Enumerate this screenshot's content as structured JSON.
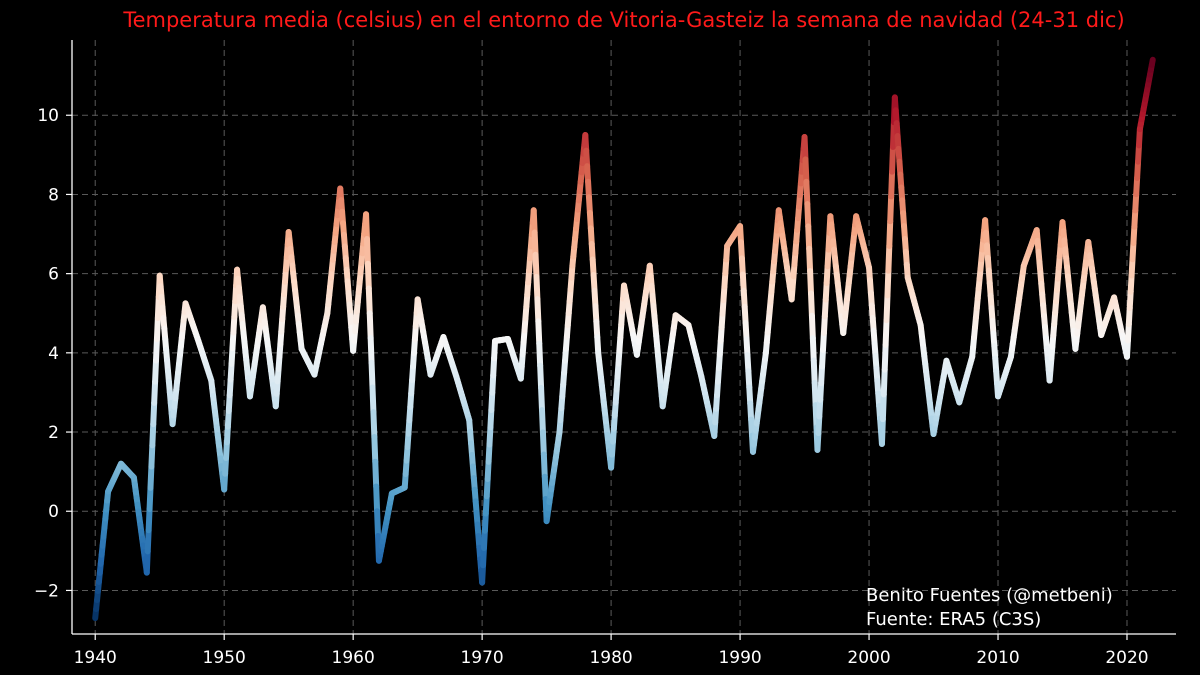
{
  "chart_data": {
    "type": "line",
    "title": "Temperatura media (celsius) en el entorno de Vitoria-Gasteiz la semana de navidad (24-31 dic)",
    "xlabel": "",
    "ylabel": "",
    "xlim": [
      1938.2,
      2023.8
    ],
    "ylim": [
      -3.1,
      11.9
    ],
    "xticks": [
      1940,
      1950,
      1960,
      1970,
      1980,
      1990,
      2000,
      2010,
      2020
    ],
    "yticks": [
      -2,
      0,
      2,
      4,
      6,
      8,
      10
    ],
    "grid": true,
    "colormap": "RdBu_r",
    "colormap_stops": [
      "#053061",
      "#2166ac",
      "#4393c3",
      "#92c5de",
      "#d1e5f0",
      "#f7f7f7",
      "#fddbc7",
      "#f4a582",
      "#d6604d",
      "#b2182b",
      "#67001f"
    ],
    "x": [
      1940,
      1941,
      1942,
      1943,
      1944,
      1945,
      1946,
      1947,
      1948,
      1949,
      1950,
      1951,
      1952,
      1953,
      1954,
      1955,
      1956,
      1957,
      1958,
      1959,
      1960,
      1961,
      1962,
      1963,
      1964,
      1965,
      1966,
      1967,
      1968,
      1969,
      1970,
      1971,
      1972,
      1973,
      1974,
      1975,
      1976,
      1977,
      1978,
      1979,
      1980,
      1981,
      1982,
      1983,
      1984,
      1985,
      1986,
      1987,
      1988,
      1989,
      1990,
      1991,
      1992,
      1993,
      1994,
      1995,
      1996,
      1997,
      1998,
      1999,
      2000,
      2001,
      2002,
      2003,
      2004,
      2005,
      2006,
      2007,
      2008,
      2009,
      2010,
      2011,
      2012,
      2013,
      2014,
      2015,
      2016,
      2017,
      2018,
      2019,
      2020,
      2021,
      2022
    ],
    "y": [
      -2.7,
      0.5,
      1.2,
      0.85,
      -1.55,
      5.95,
      2.2,
      5.25,
      4.3,
      3.3,
      0.55,
      6.1,
      2.9,
      5.15,
      2.65,
      7.05,
      4.1,
      3.45,
      5.0,
      8.15,
      4.05,
      7.5,
      -1.25,
      0.45,
      0.6,
      5.35,
      3.45,
      4.4,
      3.4,
      2.3,
      -1.8,
      4.3,
      4.35,
      3.35,
      7.6,
      -0.25,
      2.0,
      6.2,
      9.5,
      4.0,
      1.1,
      5.7,
      3.95,
      6.2,
      2.65,
      4.95,
      4.7,
      3.4,
      1.9,
      6.7,
      7.2,
      1.5,
      4.0,
      7.6,
      5.35,
      9.45,
      1.55,
      7.45,
      4.5,
      7.45,
      6.15,
      1.7,
      10.45,
      5.9,
      4.7,
      1.95,
      3.8,
      2.75,
      3.9,
      7.35,
      2.9,
      3.9,
      6.2,
      7.1,
      3.3,
      7.3,
      4.1,
      6.8,
      4.45,
      5.4,
      3.9,
      9.65,
      11.4
    ]
  },
  "credits": {
    "author": "Benito Fuentes (@metbeni)",
    "source": "Fuente: ERA5 (C3S)"
  }
}
